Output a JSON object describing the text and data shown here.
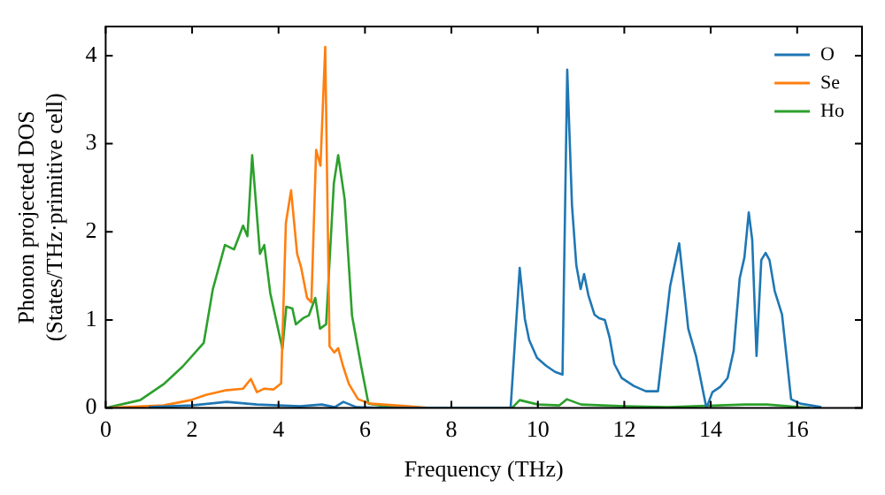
{
  "chart_data": {
    "type": "line",
    "xlabel": "Frequency (THz)",
    "ylabel": "Phonon projected DOS\n(States/THz·primitive cell)",
    "xlim": [
      0,
      17.5
    ],
    "ylim": [
      0,
      4.33
    ],
    "xticks": [
      0,
      2,
      4,
      6,
      8,
      10,
      12,
      14,
      16
    ],
    "yticks": [
      0,
      1,
      2,
      3,
      4
    ],
    "legend": "top right",
    "grid": false,
    "marker": "none",
    "line_style": "solid",
    "series": [
      {
        "name": "O",
        "color": "#1f77b4",
        "x": [
          1,
          2,
          2.8,
          3.5,
          4.5,
          5,
          5.3,
          5.5,
          5.8,
          6.5,
          9.37,
          9.58,
          9.7,
          9.8,
          9.98,
          10.19,
          10.4,
          10.57,
          10.68,
          10.79,
          10.89,
          10.99,
          11.07,
          11.17,
          11.31,
          11.42,
          11.55,
          11.66,
          11.77,
          11.94,
          12.22,
          12.5,
          12.78,
          13.06,
          13.27,
          13.48,
          13.66,
          13.9,
          14.04,
          14.22,
          14.39,
          14.53,
          14.67,
          14.78,
          14.88,
          14.96,
          15.06,
          15.17,
          15.27,
          15.36,
          15.48,
          15.65,
          15.86,
          16.07,
          16.56
        ],
        "values": [
          0.01,
          0.03,
          0.07,
          0.04,
          0.02,
          0.04,
          0.01,
          0.07,
          0.01,
          0,
          0,
          1.59,
          1.01,
          0.77,
          0.57,
          0.48,
          0.41,
          0.38,
          3.84,
          2.3,
          1.62,
          1.35,
          1.52,
          1.28,
          1.06,
          1.02,
          1.0,
          0.8,
          0.5,
          0.34,
          0.25,
          0.19,
          0.19,
          1.38,
          1.87,
          0.9,
          0.59,
          0,
          0.18,
          0.24,
          0.34,
          0.65,
          1.47,
          1.71,
          2.22,
          1.91,
          0.59,
          1.68,
          1.76,
          1.68,
          1.33,
          1.06,
          0.1,
          0.05,
          0.01
        ]
      },
      {
        "name": "Se",
        "color": "#ff7f0e",
        "x": [
          0,
          1.34,
          1.97,
          2.32,
          2.76,
          3.18,
          3.36,
          3.5,
          3.67,
          3.88,
          4.06,
          4.17,
          4.29,
          4.43,
          4.52,
          4.66,
          4.76,
          4.87,
          4.97,
          5.08,
          5.18,
          5.29,
          5.38,
          5.49,
          5.63,
          5.84,
          6.12,
          7.0,
          7.5
        ],
        "values": [
          0,
          0.03,
          0.09,
          0.15,
          0.2,
          0.22,
          0.33,
          0.18,
          0.22,
          0.21,
          0.28,
          2.1,
          2.47,
          1.75,
          1.6,
          1.25,
          1.2,
          2.93,
          2.75,
          4.1,
          0.7,
          0.63,
          0.68,
          0.48,
          0.27,
          0.1,
          0.05,
          0.02,
          0
        ]
      },
      {
        "name": "Ho",
        "color": "#2ca02c",
        "x": [
          0,
          0.8,
          1.34,
          1.78,
          2.27,
          2.48,
          2.76,
          2.97,
          3.18,
          3.28,
          3.39,
          3.57,
          3.67,
          3.81,
          4.09,
          4.18,
          4.32,
          4.4,
          4.57,
          4.7,
          4.85,
          4.96,
          5.1,
          5.28,
          5.38,
          5.53,
          5.7,
          5.91,
          6.08,
          6.5,
          7.0,
          9.4,
          9.58,
          10.0,
          10.5,
          10.67,
          11.0,
          12.0,
          13.0,
          14.8,
          15.3,
          16.3
        ],
        "values": [
          0,
          0.09,
          0.27,
          0.47,
          0.74,
          1.35,
          1.85,
          1.8,
          2.07,
          1.95,
          2.87,
          1.75,
          1.85,
          1.3,
          0.67,
          1.15,
          1.13,
          0.95,
          1.02,
          1.05,
          1.25,
          0.9,
          0.95,
          2.55,
          2.87,
          2.37,
          1.05,
          0.48,
          0.05,
          0.02,
          0,
          0,
          0.09,
          0.04,
          0.03,
          0.1,
          0.04,
          0.02,
          0.01,
          0.04,
          0.04,
          0
        ]
      }
    ]
  }
}
